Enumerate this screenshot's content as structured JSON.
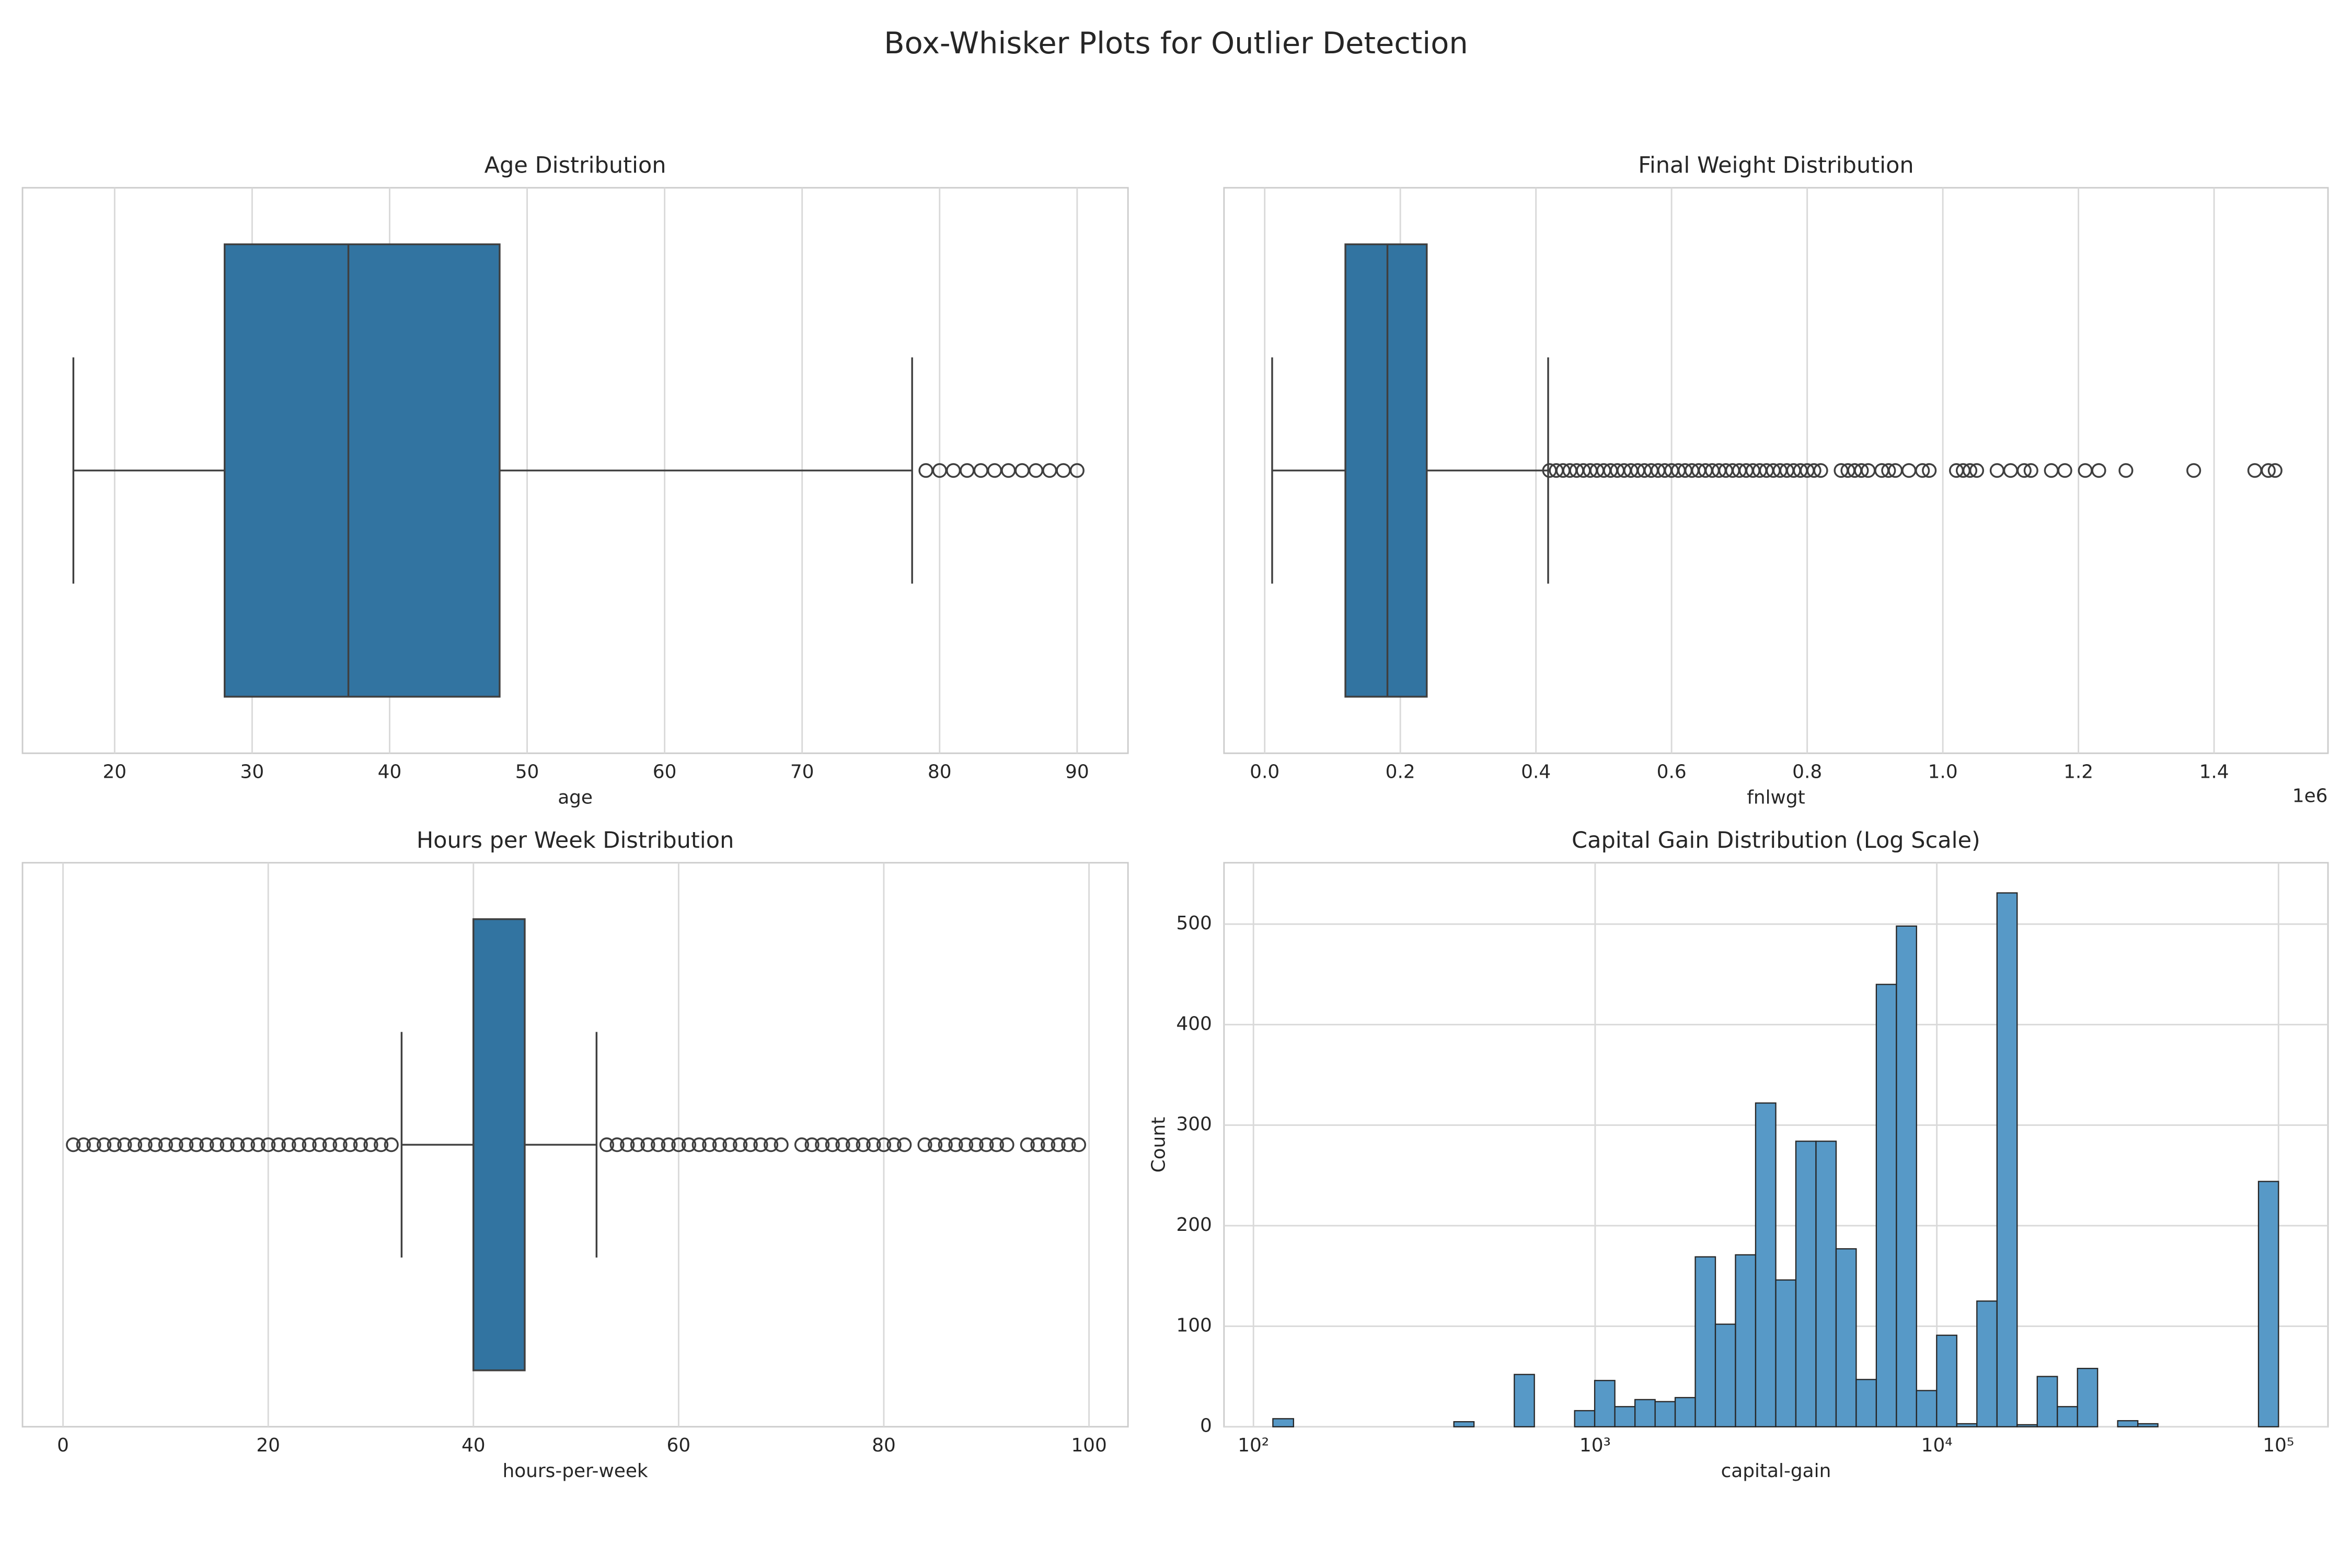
{
  "title": "Box-Whisker Plots for Outlier Detection",
  "chart_data": [
    {
      "type": "box",
      "title": "Age Distribution",
      "xlabel": "age",
      "color": "#3274a1",
      "grid": true,
      "xlim": [
        13.3,
        93.7
      ],
      "xticks": [
        20,
        30,
        40,
        50,
        60,
        70,
        80,
        90
      ],
      "whislo": 17,
      "q1": 28,
      "median": 37,
      "q3": 48,
      "whishi": 78,
      "outliers": [
        79,
        80,
        81,
        82,
        83,
        84,
        85,
        86,
        87,
        88,
        89,
        90
      ]
    },
    {
      "type": "box",
      "title": "Final Weight Distribution",
      "xlabel": "fnlwgt",
      "offset_label": "1e6",
      "color": "#3274a1",
      "grid": true,
      "xlim": [
        -0.06,
        1.568
      ],
      "xticks": [
        {
          "value": 0,
          "label": "0.0"
        },
        0.2,
        0.4,
        0.6,
        0.8,
        {
          "value": 1,
          "label": "1.0"
        },
        1.2,
        1.4
      ],
      "whislo": 0.011,
      "q1": 0.119,
      "median": 0.181,
      "q3": 0.239,
      "whishi": 0.418,
      "outliers": [
        0.42,
        0.43,
        0.44,
        0.45,
        0.46,
        0.47,
        0.48,
        0.49,
        0.5,
        0.51,
        0.52,
        0.53,
        0.54,
        0.55,
        0.56,
        0.57,
        0.58,
        0.59,
        0.6,
        0.61,
        0.62,
        0.63,
        0.64,
        0.65,
        0.66,
        0.67,
        0.68,
        0.69,
        0.7,
        0.71,
        0.72,
        0.73,
        0.74,
        0.75,
        0.76,
        0.77,
        0.78,
        0.79,
        0.8,
        0.81,
        0.82,
        0.85,
        0.86,
        0.87,
        0.88,
        0.89,
        0.91,
        0.92,
        0.93,
        0.95,
        0.97,
        0.98,
        1.02,
        1.03,
        1.04,
        1.05,
        1.08,
        1.1,
        1.12,
        1.13,
        1.16,
        1.18,
        1.21,
        1.23,
        1.27,
        1.37,
        1.46,
        1.48,
        1.49
      ]
    },
    {
      "type": "box",
      "title": "Hours per Week Distribution",
      "xlabel": "hours-per-week",
      "color": "#3274a1",
      "grid": true,
      "xlim": [
        -3.95,
        103.8
      ],
      "xticks": [
        0,
        20,
        40,
        60,
        80,
        100
      ],
      "whislo": 33,
      "q1": 40,
      "median": 40,
      "q3": 45,
      "whishi": 52,
      "outliers": [
        1,
        2,
        3,
        4,
        5,
        6,
        7,
        8,
        9,
        10,
        11,
        12,
        13,
        14,
        15,
        16,
        17,
        18,
        19,
        20,
        21,
        22,
        23,
        24,
        25,
        26,
        27,
        28,
        29,
        30,
        31,
        32,
        53,
        54,
        55,
        56,
        57,
        58,
        59,
        60,
        61,
        62,
        63,
        64,
        65,
        66,
        67,
        68,
        69,
        70,
        72,
        73,
        74,
        75,
        76,
        77,
        78,
        79,
        80,
        81,
        82,
        84,
        85,
        86,
        87,
        88,
        89,
        90,
        91,
        92,
        94,
        95,
        96,
        97,
        98,
        99
      ]
    },
    {
      "type": "histogram",
      "title": "Capital Gain Distribution (Log Scale)",
      "xlabel": "capital-gain",
      "ylabel": "Count",
      "color": "#5799c7",
      "grid": true,
      "xscale": "log",
      "xlim": [
        82,
        139600
      ],
      "ylim": [
        0,
        561
      ],
      "xticks": [
        {
          "value": 100,
          "label": "10²"
        },
        {
          "value": 1000,
          "label": "10³"
        },
        {
          "value": 10000,
          "label": "10⁴"
        },
        {
          "value": 100000,
          "label": "10⁵"
        }
      ],
      "yticks": [
        0,
        100,
        200,
        300,
        400,
        500
      ],
      "bins": [
        114,
        131,
        150,
        171,
        196,
        225,
        257,
        294,
        337,
        386,
        442,
        506,
        580,
        664,
        760,
        871,
        997,
        1142,
        1308,
        1498,
        1715,
        1964,
        2249,
        2575,
        2949,
        3378,
        3868,
        4430,
        5073,
        5808,
        6652,
        7618,
        8722,
        9989,
        11440,
        13100,
        15003,
        17180,
        19675,
        22532,
        25804,
        29547,
        33837,
        38751,
        44361,
        50808,
        58187,
        66628,
        76304,
        87385,
        99999
      ],
      "counts": [
        8,
        0,
        0,
        0,
        0,
        0,
        0,
        0,
        0,
        5,
        0,
        0,
        52,
        0,
        0,
        16,
        46,
        20,
        27,
        25,
        29,
        169,
        102,
        171,
        322,
        146,
        284,
        284,
        177,
        47,
        440,
        498,
        36,
        91,
        3,
        125,
        531,
        2,
        50,
        20,
        58,
        0,
        6,
        3,
        0,
        0,
        0,
        0,
        0,
        244
      ]
    }
  ]
}
